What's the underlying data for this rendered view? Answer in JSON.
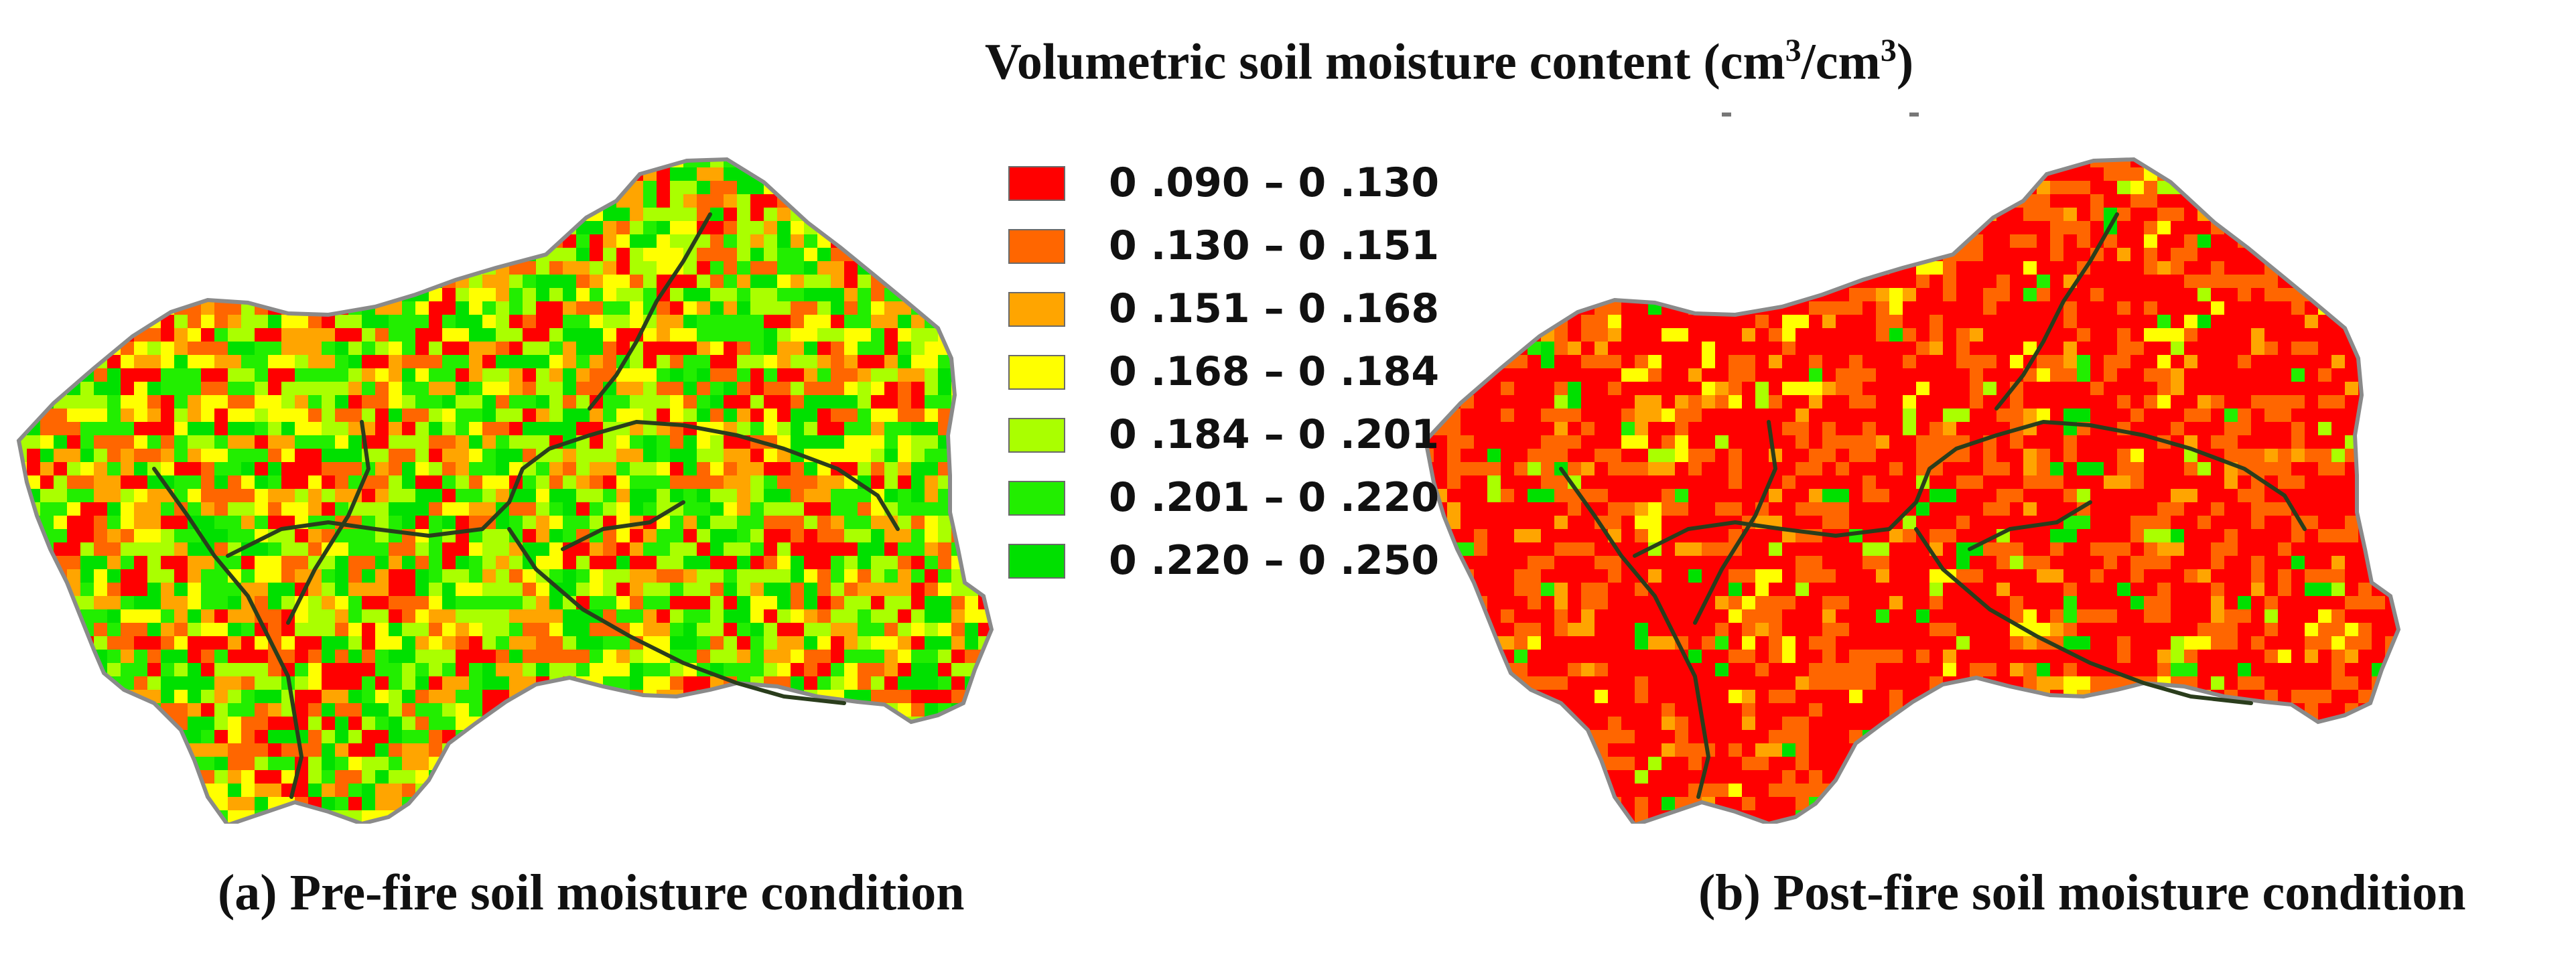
{
  "title": {
    "prefix": "Volumetric soil moisture content (cm",
    "sup1": "3",
    "middle": "/cm",
    "sup2": "3",
    "suffix": ")"
  },
  "legend": [
    {
      "label": "0 .090 – 0 .130",
      "color": "#ff0000"
    },
    {
      "label": "0 .130 – 0 .151",
      "color": "#ff6600"
    },
    {
      "label": "0 .151 – 0 .168",
      "color": "#ffa500"
    },
    {
      "label": "0 .168 – 0 .184",
      "color": "#ffff00"
    },
    {
      "label": "0 .184 – 0 .201",
      "color": "#aaff00"
    },
    {
      "label": "0 .201 – 0 .220",
      "color": "#22ee00"
    },
    {
      "label": "0 .220 – 0 .250",
      "color": "#00e000"
    }
  ],
  "panels": {
    "a": {
      "caption": "(a) Pre-fire soil moisture condition",
      "class_weights": [
        0.13,
        0.13,
        0.13,
        0.13,
        0.17,
        0.16,
        0.15
      ]
    },
    "b": {
      "caption": "(b) Post-fire soil moisture condition",
      "class_weights": [
        0.62,
        0.25,
        0.05,
        0.03,
        0.02,
        0.01,
        0.02
      ]
    }
  },
  "colors": {
    "stream": "#2a3d1c",
    "outline": "#8a8a8a",
    "background": "#ffffff"
  }
}
